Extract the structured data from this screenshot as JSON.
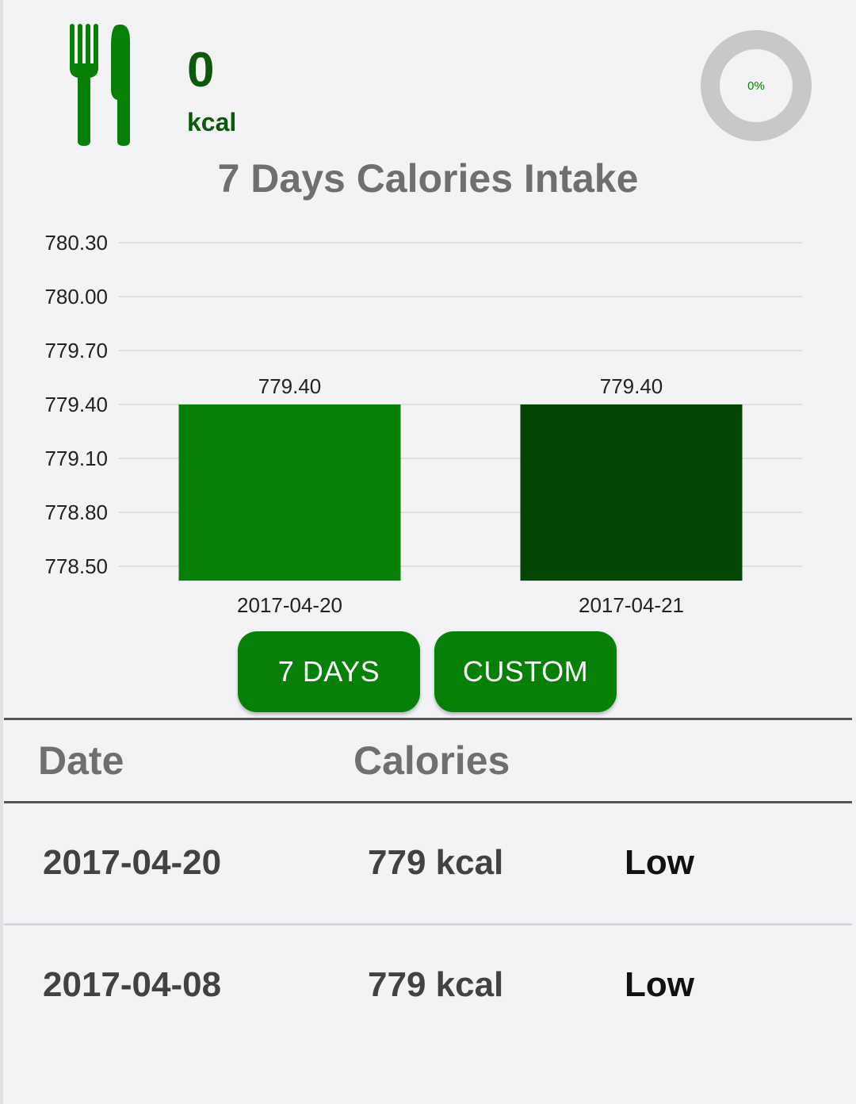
{
  "header": {
    "kcal_value": "0",
    "kcal_unit": "kcal",
    "progress_percent": 0,
    "progress_label": "0%"
  },
  "chart_title": "7 Days Calories Intake",
  "chart_data": {
    "type": "bar",
    "title": "7 Days Calories Intake",
    "categories": [
      "2017-04-20",
      "2017-04-21"
    ],
    "values": [
      779.4,
      779.4
    ],
    "value_labels": [
      "779.40",
      "779.40"
    ],
    "bar_colors": [
      "#078007",
      "#034603"
    ],
    "ylim": [
      778.42,
      780.3
    ],
    "yticks": [
      780.3,
      780.0,
      779.7,
      779.4,
      779.1,
      778.8,
      778.5
    ],
    "ytick_labels": [
      "780.30",
      "780.00",
      "779.70",
      "779.40",
      "779.10",
      "778.80",
      "778.50"
    ],
    "grid": true,
    "legend": "none"
  },
  "buttons": {
    "seven_days": "7 DAYS",
    "custom": "CUSTOM"
  },
  "table": {
    "headers": {
      "date": "Date",
      "calories": "Calories"
    },
    "rows": [
      {
        "date": "2017-04-20",
        "calories": "779 kcal",
        "level": "Low"
      },
      {
        "date": "2017-04-08",
        "calories": "779 kcal",
        "level": "Low"
      }
    ]
  },
  "colors": {
    "accent": "#078007",
    "accent_dark": "#034603",
    "heading_gray": "#6f6f6f",
    "ring_track": "#c8c8cb"
  },
  "icons": {
    "food": "fork-knife-icon"
  }
}
